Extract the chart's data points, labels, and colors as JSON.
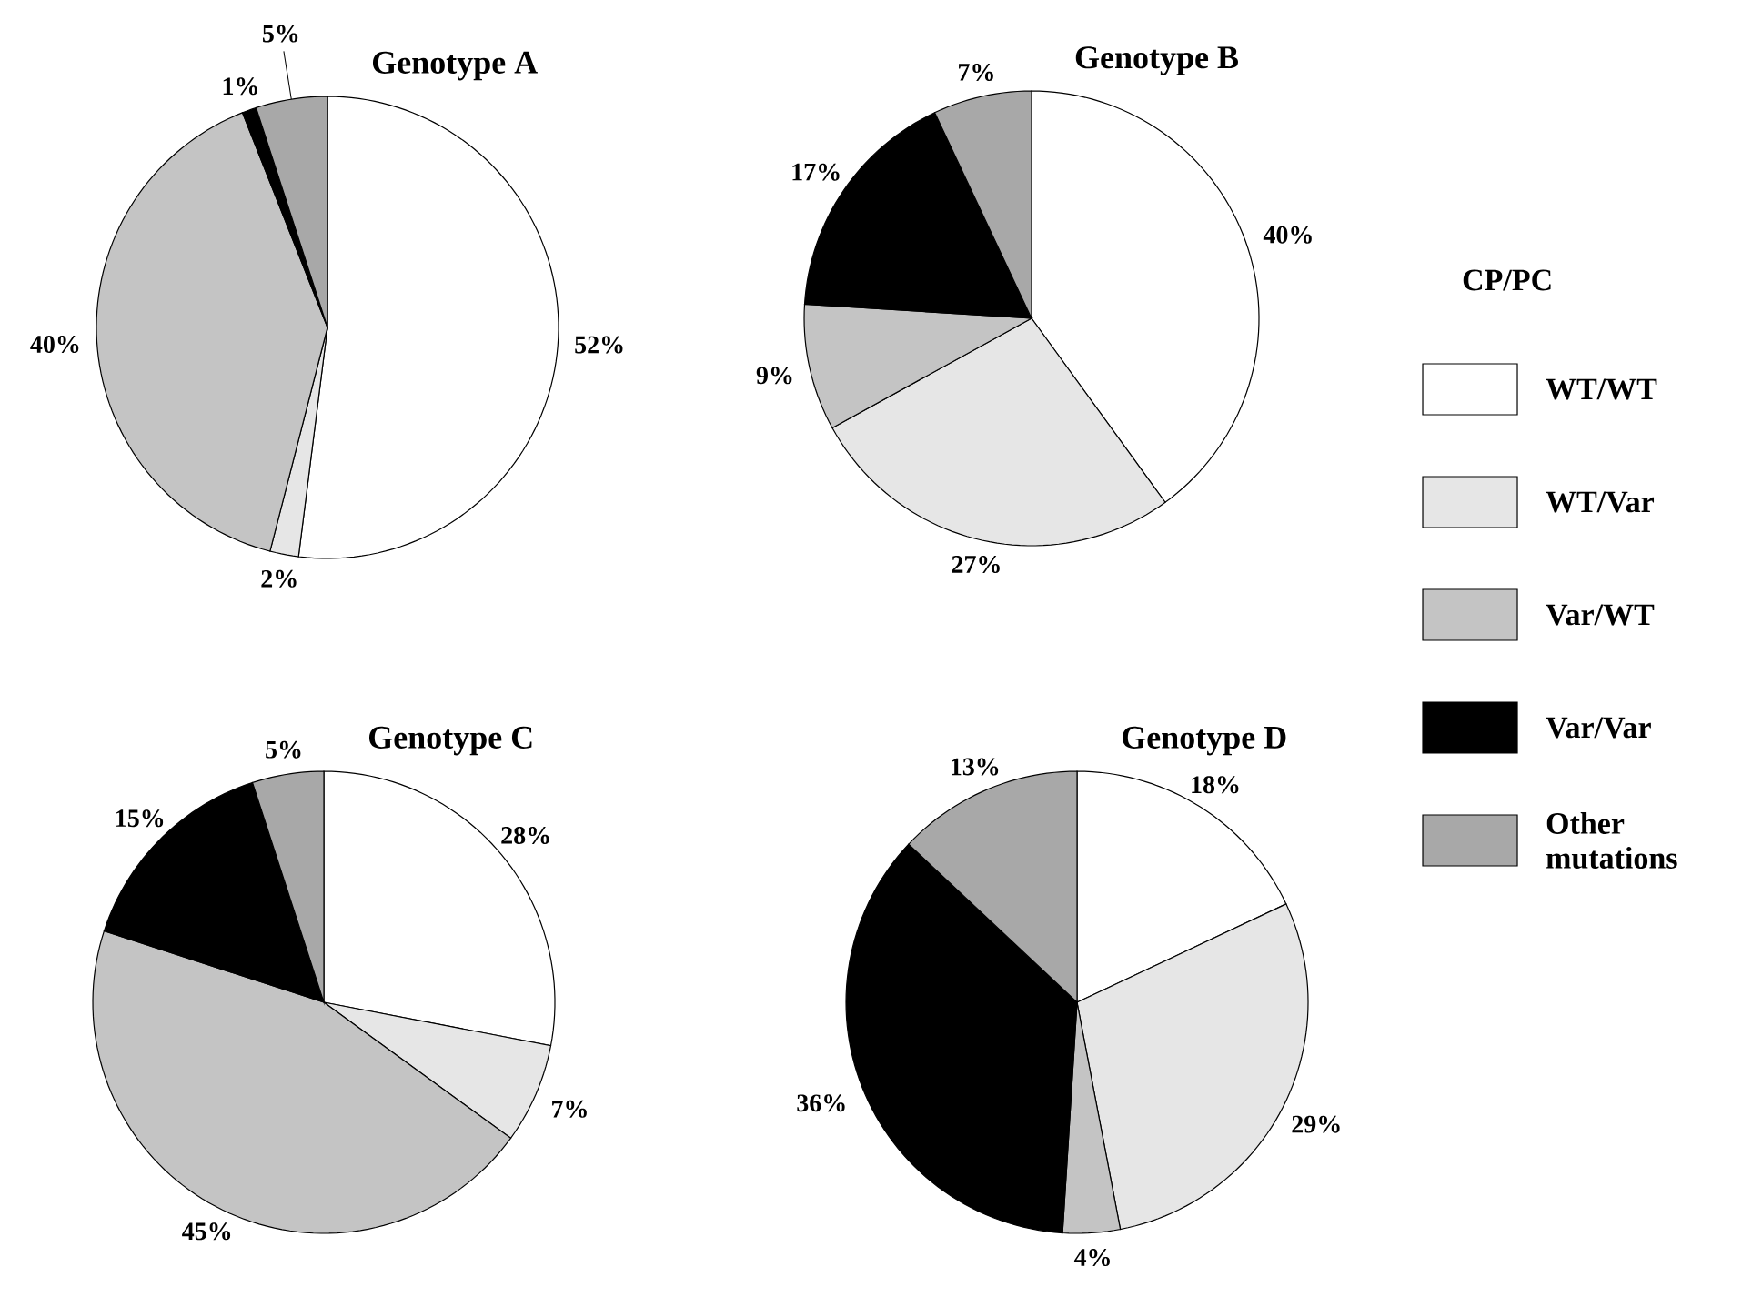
{
  "chart_data": [
    {
      "type": "pie",
      "title": "Genotype A",
      "categories": [
        null,
        null,
        null,
        null,
        null
      ],
      "values": [
        52,
        2,
        40,
        1,
        5
      ],
      "value_labels": [
        "52%",
        "2%",
        "40%",
        "1%",
        "5%"
      ],
      "colors": [
        "#ffffff",
        "#e6e6e6",
        "#c4c4c4",
        "#000000",
        "#a8a8a8"
      ]
    },
    {
      "type": "pie",
      "title": "Genotype B",
      "categories": [
        "WT/WT",
        "WT/Var",
        "Var/WT",
        "Var/Var",
        "Other mutations"
      ],
      "values": [
        40,
        27,
        9,
        17,
        7
      ],
      "value_labels": [
        "40%",
        "27%",
        "9%",
        "17%",
        "7%"
      ],
      "colors": [
        "#ffffff",
        "#e6e6e6",
        "#c4c4c4",
        "#000000",
        "#a8a8a8"
      ],
      "legend": "right",
      "legend_title": "CP/PC"
    },
    {
      "type": "pie",
      "title": "Genotype C",
      "categories": [
        null,
        null,
        null,
        null,
        null
      ],
      "values": [
        28,
        7,
        45,
        15,
        5
      ],
      "value_labels": [
        "28%",
        "7%",
        "45%",
        "15%",
        "5%"
      ],
      "colors": [
        "#ffffff",
        "#e6e6e6",
        "#c4c4c4",
        "#000000",
        "#a8a8a8"
      ]
    },
    {
      "type": "pie",
      "title": "Genotype D",
      "categories": [
        null,
        null,
        null,
        null,
        null
      ],
      "values": [
        18,
        29,
        4,
        36,
        13
      ],
      "value_labels": [
        "18%",
        "29%",
        "4%",
        "36%",
        "13%"
      ],
      "colors": [
        "#ffffff",
        "#e6e6e6",
        "#c4c4c4",
        "#000000",
        "#a8a8a8"
      ]
    }
  ]
}
